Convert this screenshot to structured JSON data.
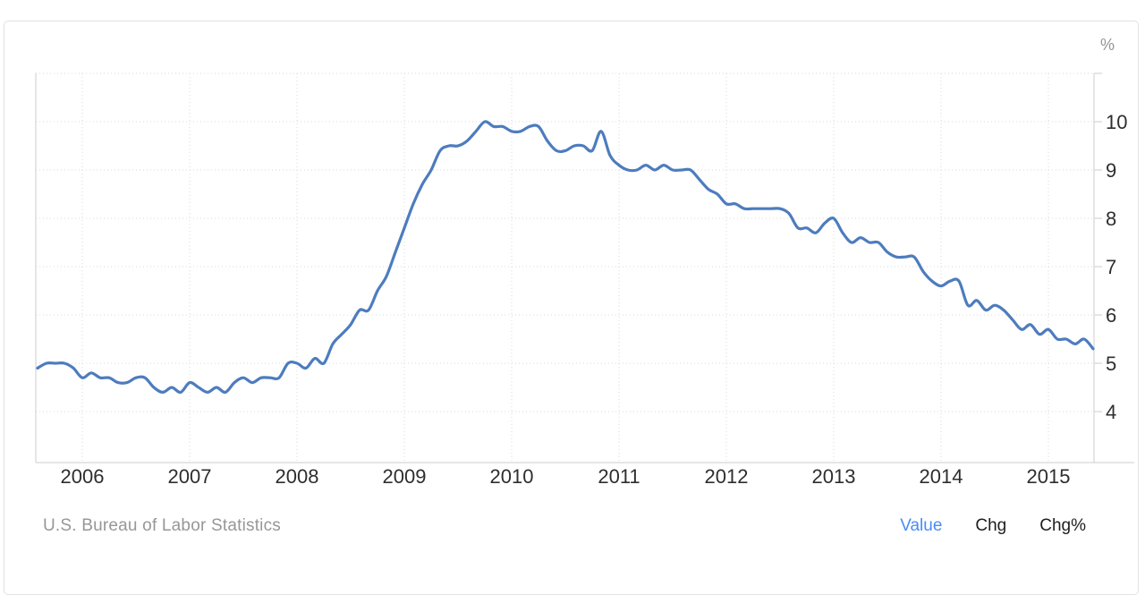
{
  "chart_data": {
    "type": "line",
    "title": "",
    "unit": "%",
    "frequency": "monthly",
    "start": "2005-08",
    "end": "2015-06",
    "grid": "dotted",
    "y_axis_side": "right",
    "ylim": [
      2.95,
      11.05
    ],
    "y_tick_values": [
      10,
      9,
      8,
      7,
      6,
      5,
      4
    ],
    "y_gridline_values": [
      11,
      10,
      9,
      8,
      7,
      6,
      5,
      4
    ],
    "x_tick_labels": [
      "2006",
      "2007",
      "2008",
      "2009",
      "2010",
      "2011",
      "2012",
      "2013",
      "2014",
      "2015"
    ],
    "series": [
      {
        "name": "Value",
        "color": "#4d7cbe",
        "values": [
          4.9,
          5.0,
          5.0,
          5.0,
          4.9,
          4.7,
          4.8,
          4.7,
          4.7,
          4.6,
          4.6,
          4.7,
          4.7,
          4.5,
          4.4,
          4.5,
          4.4,
          4.6,
          4.5,
          4.4,
          4.5,
          4.4,
          4.6,
          4.7,
          4.6,
          4.7,
          4.7,
          4.7,
          5.0,
          5.0,
          4.9,
          5.1,
          5.0,
          5.4,
          5.6,
          5.8,
          6.1,
          6.1,
          6.5,
          6.8,
          7.3,
          7.8,
          8.3,
          8.7,
          9.0,
          9.4,
          9.5,
          9.5,
          9.6,
          9.8,
          10.0,
          9.9,
          9.9,
          9.8,
          9.8,
          9.9,
          9.9,
          9.6,
          9.4,
          9.4,
          9.5,
          9.5,
          9.4,
          9.8,
          9.3,
          9.1,
          9.0,
          9.0,
          9.1,
          9.0,
          9.1,
          9.0,
          9.0,
          9.0,
          8.8,
          8.6,
          8.5,
          8.3,
          8.3,
          8.2,
          8.2,
          8.2,
          8.2,
          8.2,
          8.1,
          7.8,
          7.8,
          7.7,
          7.9,
          8.0,
          7.7,
          7.5,
          7.6,
          7.5,
          7.5,
          7.3,
          7.2,
          7.2,
          7.2,
          6.9,
          6.7,
          6.6,
          6.7,
          6.7,
          6.2,
          6.3,
          6.1,
          6.2,
          6.1,
          5.9,
          5.7,
          5.8,
          5.6,
          5.7,
          5.5,
          5.5,
          5.4,
          5.5,
          5.3
        ]
      }
    ]
  },
  "footer": {
    "source": "U.S. Bureau of Labor Statistics",
    "buttons": [
      {
        "label": "Value",
        "active": true
      },
      {
        "label": "Chg",
        "active": false
      },
      {
        "label": "Chg%",
        "active": false
      }
    ]
  },
  "colors": {
    "accent": "#4a8cf4",
    "line": "#4d7cbe",
    "grid_dotted": "#d8d8d8",
    "axis_solid": "#cccccc",
    "tick_text": "#2e2e2e",
    "muted_text": "#979797"
  }
}
